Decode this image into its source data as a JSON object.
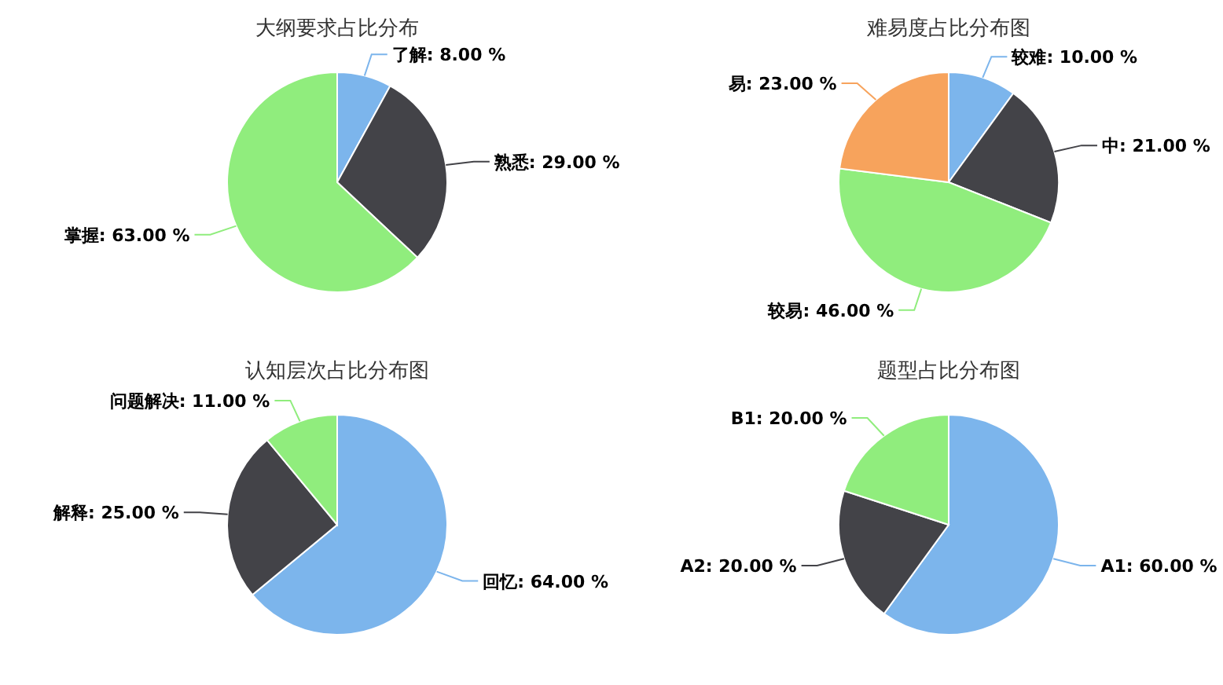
{
  "chart_data": [
    {
      "type": "pie",
      "title": "大纲要求占比分布",
      "categories": [
        "了解",
        "熟悉",
        "掌握"
      ],
      "values": [
        8,
        29,
        63
      ],
      "colors": [
        "#7cb5ec",
        "#434348",
        "#90ed7d"
      ],
      "value_labels": [
        "8.00 %",
        "29.00 %",
        "63.00 %"
      ]
    },
    {
      "type": "pie",
      "title": "难易度占比分布图",
      "categories": [
        "较难",
        "中",
        "较易",
        "易"
      ],
      "values": [
        10,
        21,
        46,
        23
      ],
      "colors": [
        "#7cb5ec",
        "#434348",
        "#90ed7d",
        "#f7a35c"
      ],
      "value_labels": [
        "10.00 %",
        "21.00 %",
        "46.00 %",
        "23.00 %"
      ]
    },
    {
      "type": "pie",
      "title": "认知层次占比分布图",
      "categories": [
        "回忆",
        "解释",
        "问题解决"
      ],
      "values": [
        64,
        25,
        11
      ],
      "colors": [
        "#7cb5ec",
        "#434348",
        "#90ed7d"
      ],
      "value_labels": [
        "64.00 %",
        "25.00 %",
        "11.00 %"
      ]
    },
    {
      "type": "pie",
      "title": "题型占比分布图",
      "categories": [
        "A1",
        "A2",
        "B1"
      ],
      "values": [
        60,
        20,
        20
      ],
      "colors": [
        "#7cb5ec",
        "#434348",
        "#90ed7d"
      ],
      "value_labels": [
        "60.00 %",
        "20.00 %",
        "20.00 %"
      ]
    }
  ]
}
